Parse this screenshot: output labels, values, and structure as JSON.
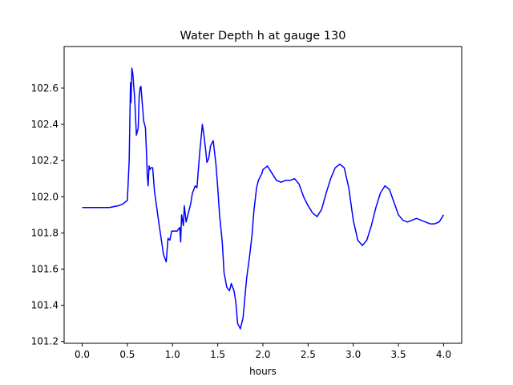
{
  "chart_data": {
    "type": "line",
    "title": "Water Depth h at gauge 130",
    "xlabel": "hours",
    "ylabel": "",
    "xlim": [
      -0.2,
      4.2
    ],
    "ylim": [
      101.19,
      102.83
    ],
    "grid": false,
    "x_ticks": [
      0.0,
      0.5,
      1.0,
      1.5,
      2.0,
      2.5,
      3.0,
      3.5,
      4.0
    ],
    "x_tick_labels": [
      "0.0",
      "0.5",
      "1.0",
      "1.5",
      "2.0",
      "2.5",
      "3.0",
      "3.5",
      "4.0"
    ],
    "y_ticks": [
      101.2,
      101.4,
      101.6,
      101.8,
      102.0,
      102.2,
      102.4,
      102.6
    ],
    "y_tick_labels": [
      "101.2",
      "101.4",
      "101.6",
      "101.8",
      "102.0",
      "102.2",
      "102.4",
      "102.6"
    ],
    "series": [
      {
        "color": "#0000ff",
        "x": [
          0.0,
          0.3,
          0.4,
          0.45,
          0.5,
          0.52,
          0.53,
          0.535,
          0.54,
          0.55,
          0.56,
          0.58,
          0.6,
          0.62,
          0.63,
          0.64,
          0.65,
          0.68,
          0.7,
          0.71,
          0.72,
          0.73,
          0.74,
          0.75,
          0.76,
          0.78,
          0.8,
          0.85,
          0.9,
          0.93,
          0.95,
          0.97,
          0.99,
          1.0,
          1.05,
          1.08,
          1.09,
          1.1,
          1.12,
          1.13,
          1.15,
          1.17,
          1.2,
          1.22,
          1.25,
          1.27,
          1.3,
          1.33,
          1.35,
          1.37,
          1.38,
          1.4,
          1.42,
          1.45,
          1.48,
          1.5,
          1.52,
          1.55,
          1.57,
          1.6,
          1.63,
          1.65,
          1.68,
          1.7,
          1.72,
          1.75,
          1.78,
          1.8,
          1.82,
          1.85,
          1.88,
          1.9,
          1.93,
          1.95,
          1.97,
          1.99,
          2.0,
          2.05,
          2.1,
          2.15,
          2.2,
          2.25,
          2.3,
          2.35,
          2.4,
          2.45,
          2.5,
          2.55,
          2.6,
          2.65,
          2.7,
          2.75,
          2.8,
          2.85,
          2.9,
          2.95,
          3.0,
          3.05,
          3.1,
          3.15,
          3.2,
          3.25,
          3.3,
          3.35,
          3.4,
          3.45,
          3.5,
          3.55,
          3.6,
          3.65,
          3.7,
          3.75,
          3.8,
          3.85,
          3.9,
          3.95,
          4.0
        ],
        "y": [
          101.94,
          101.94,
          101.95,
          101.96,
          101.98,
          102.2,
          102.5,
          102.63,
          102.52,
          102.71,
          102.68,
          102.55,
          102.34,
          102.38,
          102.55,
          102.6,
          102.61,
          102.42,
          102.38,
          102.26,
          102.12,
          102.06,
          102.17,
          102.15,
          102.16,
          102.16,
          102.03,
          101.85,
          101.68,
          101.64,
          101.77,
          101.76,
          101.81,
          101.81,
          101.81,
          101.83,
          101.75,
          101.9,
          101.84,
          101.95,
          101.86,
          101.9,
          101.96,
          102.02,
          102.06,
          102.05,
          102.24,
          102.4,
          102.33,
          102.24,
          102.19,
          102.21,
          102.28,
          102.31,
          102.18,
          102.05,
          101.9,
          101.75,
          101.58,
          101.5,
          101.48,
          101.52,
          101.48,
          101.42,
          101.3,
          101.27,
          101.33,
          101.44,
          101.55,
          101.66,
          101.79,
          101.92,
          102.05,
          102.09,
          102.11,
          102.13,
          102.15,
          102.17,
          102.13,
          102.09,
          102.08,
          102.09,
          102.09,
          102.1,
          102.07,
          102.0,
          101.95,
          101.91,
          101.89,
          101.93,
          102.02,
          102.1,
          102.16,
          102.18,
          102.16,
          102.05,
          101.87,
          101.76,
          101.73,
          101.76,
          101.84,
          101.94,
          102.02,
          102.06,
          102.04,
          101.97,
          101.9,
          101.87,
          101.86,
          101.87,
          101.88,
          101.87,
          101.86,
          101.85,
          101.85,
          101.86,
          101.9
        ]
      }
    ]
  }
}
